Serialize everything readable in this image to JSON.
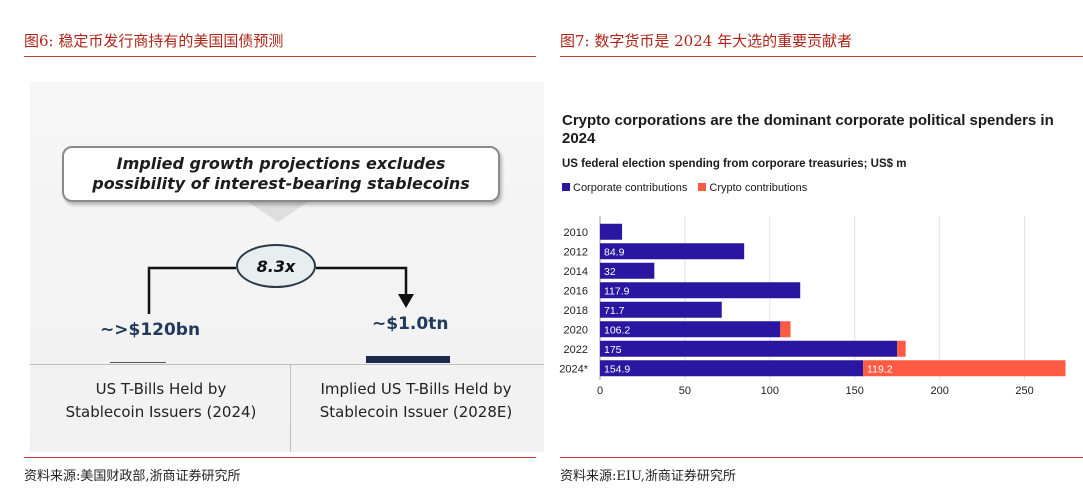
{
  "left_panel": {
    "title": "图6:  稳定币发行商持有的美国国债预测",
    "callout_line1": "Implied growth projections excludes",
    "callout_line2": "possibility of interest-bearing stablecoins",
    "multiplier": "8.3x",
    "value_2024": "~>$120bn",
    "value_2028": "~$1.0tn",
    "caption_2024_line1": "US T-Bills Held by",
    "caption_2024_line2": "Stablecoin Issuers (2024)",
    "caption_2028_line1": "Implied US T-Bills Held by",
    "caption_2028_line2": "Stablecoin Issuer (2028E)",
    "source": "资料来源:美国财政部,浙商证券研究所"
  },
  "right_panel": {
    "title": "图7:  数字货币是 2024 年大选的重要贡献者",
    "source": "资料来源:EIU,浙商证券研究所"
  },
  "colors": {
    "title_red": "#b02418",
    "corporate": "#2a16a0",
    "crypto": "#ff5a43",
    "navy_bar": "#1b2a4a"
  },
  "chart_data": {
    "type": "bar",
    "orientation": "horizontal",
    "stacked": true,
    "title": "Crypto corporations are the dominant corporate political spenders in 2024",
    "subtitle": "US federal election spending from corporare treasuries; US$ m",
    "categories": [
      "2010",
      "2012",
      "2014",
      "2016",
      "2018",
      "2020",
      "2022",
      "2024*"
    ],
    "series": [
      {
        "name": "Corporate contributions",
        "values": [
          13,
          84.9,
          32,
          117.9,
          71.7,
          106.2,
          175,
          154.9
        ],
        "labels": [
          "",
          "84.9",
          "32",
          "117.9",
          "71.7",
          "106.2",
          "175",
          "154.9"
        ]
      },
      {
        "name": "Crypto contributions",
        "values": [
          0,
          0,
          0,
          0,
          0,
          6,
          5,
          119.2
        ],
        "labels": [
          "",
          "",
          "",
          "",
          "",
          "",
          "",
          "119.2"
        ]
      }
    ],
    "xticks": [
      0,
      50,
      100,
      150,
      200,
      250
    ],
    "xlim": [
      0,
      275
    ],
    "grid": "vertical",
    "legend": "top-left"
  }
}
